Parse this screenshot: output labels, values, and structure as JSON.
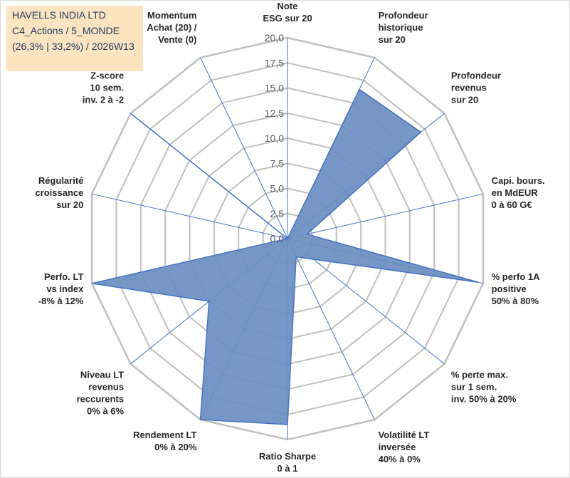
{
  "header": {
    "lines": [
      "HAVELLS INDIA LTD",
      "C4_Actions / 5_MONDE",
      "(26,3% | 33,2%) / 2026W13"
    ]
  },
  "chart_data": {
    "type": "radar",
    "title": "",
    "rmin": 0,
    "rmax": 20,
    "ticks": [
      "0,0",
      "2,5",
      "5,0",
      "7,5",
      "10,0",
      "12,5",
      "15,0",
      "17,5",
      "20,0"
    ],
    "grid": true,
    "axes": [
      {
        "label": [
          "Note",
          "ESG sur 20"
        ],
        "value": 0
      },
      {
        "label": [
          "Profondeur",
          "historique",
          "sur 20"
        ],
        "value": 16.5
      },
      {
        "label": [
          "Profondeur",
          "revenus",
          "sur 20"
        ],
        "value": 17.0
      },
      {
        "label": [
          "Capi. bours.",
          "en MdEUR",
          "0 à 60 G€"
        ],
        "value": 2.0
      },
      {
        "label": [
          "% perfo 1A",
          "positive",
          "50% à 80%"
        ],
        "value": 19.5
      },
      {
        "label": [
          "% perte max.",
          "sur 1 sem.",
          "inv. 50% à 20%"
        ],
        "value": 3.3
      },
      {
        "label": [
          "Volatilité LT",
          "inversée",
          "40% à 0%"
        ],
        "value": 2.0
      },
      {
        "label": [
          "Ratio Sharpe",
          "0 à 1"
        ],
        "value": 18.5
      },
      {
        "label": [
          "Rendement LT",
          "0% à 20%"
        ],
        "value": 20.0
      },
      {
        "label": [
          "Niveau LT",
          "revenus",
          "reccurents",
          "0% à 6%"
        ],
        "value": 10.0
      },
      {
        "label": [
          "Perfo. LT",
          "vs index",
          "-8% à 12%"
        ],
        "value": 20.0
      },
      {
        "label": [
          "Régularité",
          "croissance",
          "sur 20"
        ],
        "value": 0
      },
      {
        "label": [
          "Z-score",
          "10 sem.",
          "inv. 2 à -2"
        ],
        "value": 20.0
      },
      {
        "label": [
          "Momentum",
          "Achat (20) /",
          "Vente (0)"
        ],
        "value": 0
      }
    ],
    "series": [
      {
        "values": [
          0,
          16.5,
          17.0,
          2.0,
          19.5,
          3.3,
          2.0,
          18.5,
          20.0,
          10.0,
          20.0,
          0,
          20.0,
          0
        ]
      }
    ]
  },
  "colors": {
    "fill": "#6a8ec0",
    "stroke": "#4472c4",
    "grid": "#bfbfbf",
    "spoke": "#4472c4",
    "title_bg": "#fce4c0",
    "title_text": "#1f3864"
  }
}
